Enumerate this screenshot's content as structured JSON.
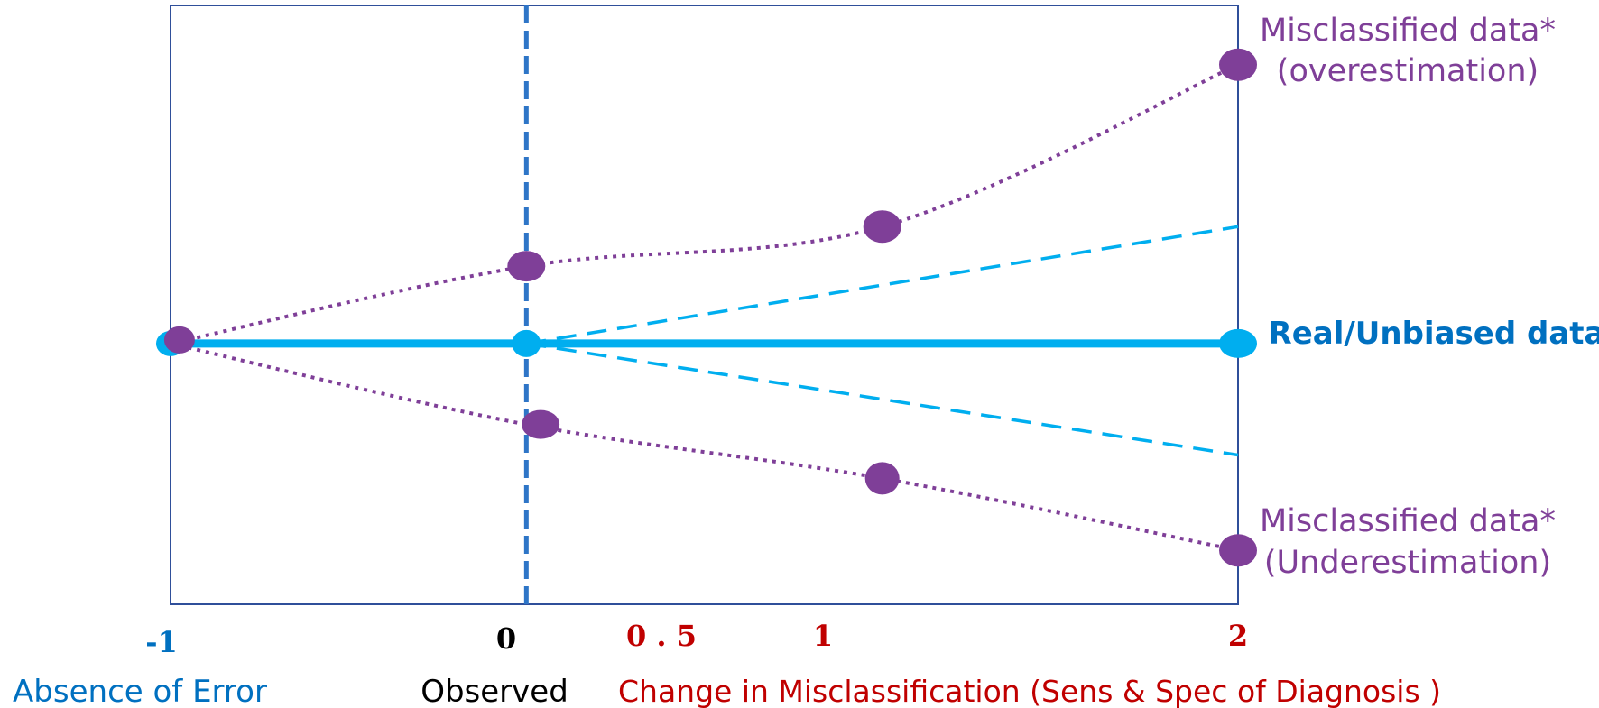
{
  "colors": {
    "frame": "#2f4f9a",
    "real_line": "#00aeef",
    "observed_line": "#2e75c7",
    "misclassified": "#7f3f98",
    "label_blue": "#0070c0",
    "tick_red": "#c00000",
    "text_black": "#000000"
  },
  "annotations": {
    "over_line1": "Misclassified data*",
    "over_line2": "(overestimation)",
    "under_line1": "Misclassified data*",
    "under_line2": "(Underestimation)",
    "real": "Real/Unbiased data"
  },
  "ticks": {
    "neg1": "-1",
    "zero": "0",
    "half": "0 . 5",
    "one": "1",
    "two": "2"
  },
  "captions": {
    "absence": "Absence of Error",
    "observed": "Observed",
    "change": "Change in Misclassification (Sens & Spec of Diagnosis )"
  },
  "chart_data": {
    "type": "line",
    "x_ticks": [
      -1,
      0,
      0.5,
      1,
      2
    ],
    "x": [
      -1,
      0,
      1,
      2
    ],
    "series": [
      {
        "name": "Real/Unbiased data",
        "style": "solid",
        "points": [
          [
            -1,
            0
          ],
          [
            0,
            0
          ],
          [
            2,
            0
          ]
        ]
      },
      {
        "name": "Misclassified data* (overestimation)",
        "style": "dotted",
        "points": [
          [
            -1,
            0
          ],
          [
            0,
            0.43
          ],
          [
            1,
            0.65
          ],
          [
            2,
            1.55
          ]
        ]
      },
      {
        "name": "Misclassified data* (Underestimation)",
        "style": "dotted",
        "points": [
          [
            -1,
            0
          ],
          [
            0,
            -0.45
          ],
          [
            1,
            -0.75
          ],
          [
            2,
            -1.15
          ]
        ]
      },
      {
        "name": "",
        "style": "dashed",
        "points": [
          [
            0,
            0
          ],
          [
            2,
            0.65
          ]
        ]
      },
      {
        "name": "",
        "style": "dashed",
        "points": [
          [
            0,
            0
          ],
          [
            2,
            -0.62
          ]
        ]
      }
    ],
    "reference_line_x": 0,
    "ylim": [
      -1.45,
      1.88
    ],
    "xlim": [
      -1,
      2.0
    ]
  }
}
